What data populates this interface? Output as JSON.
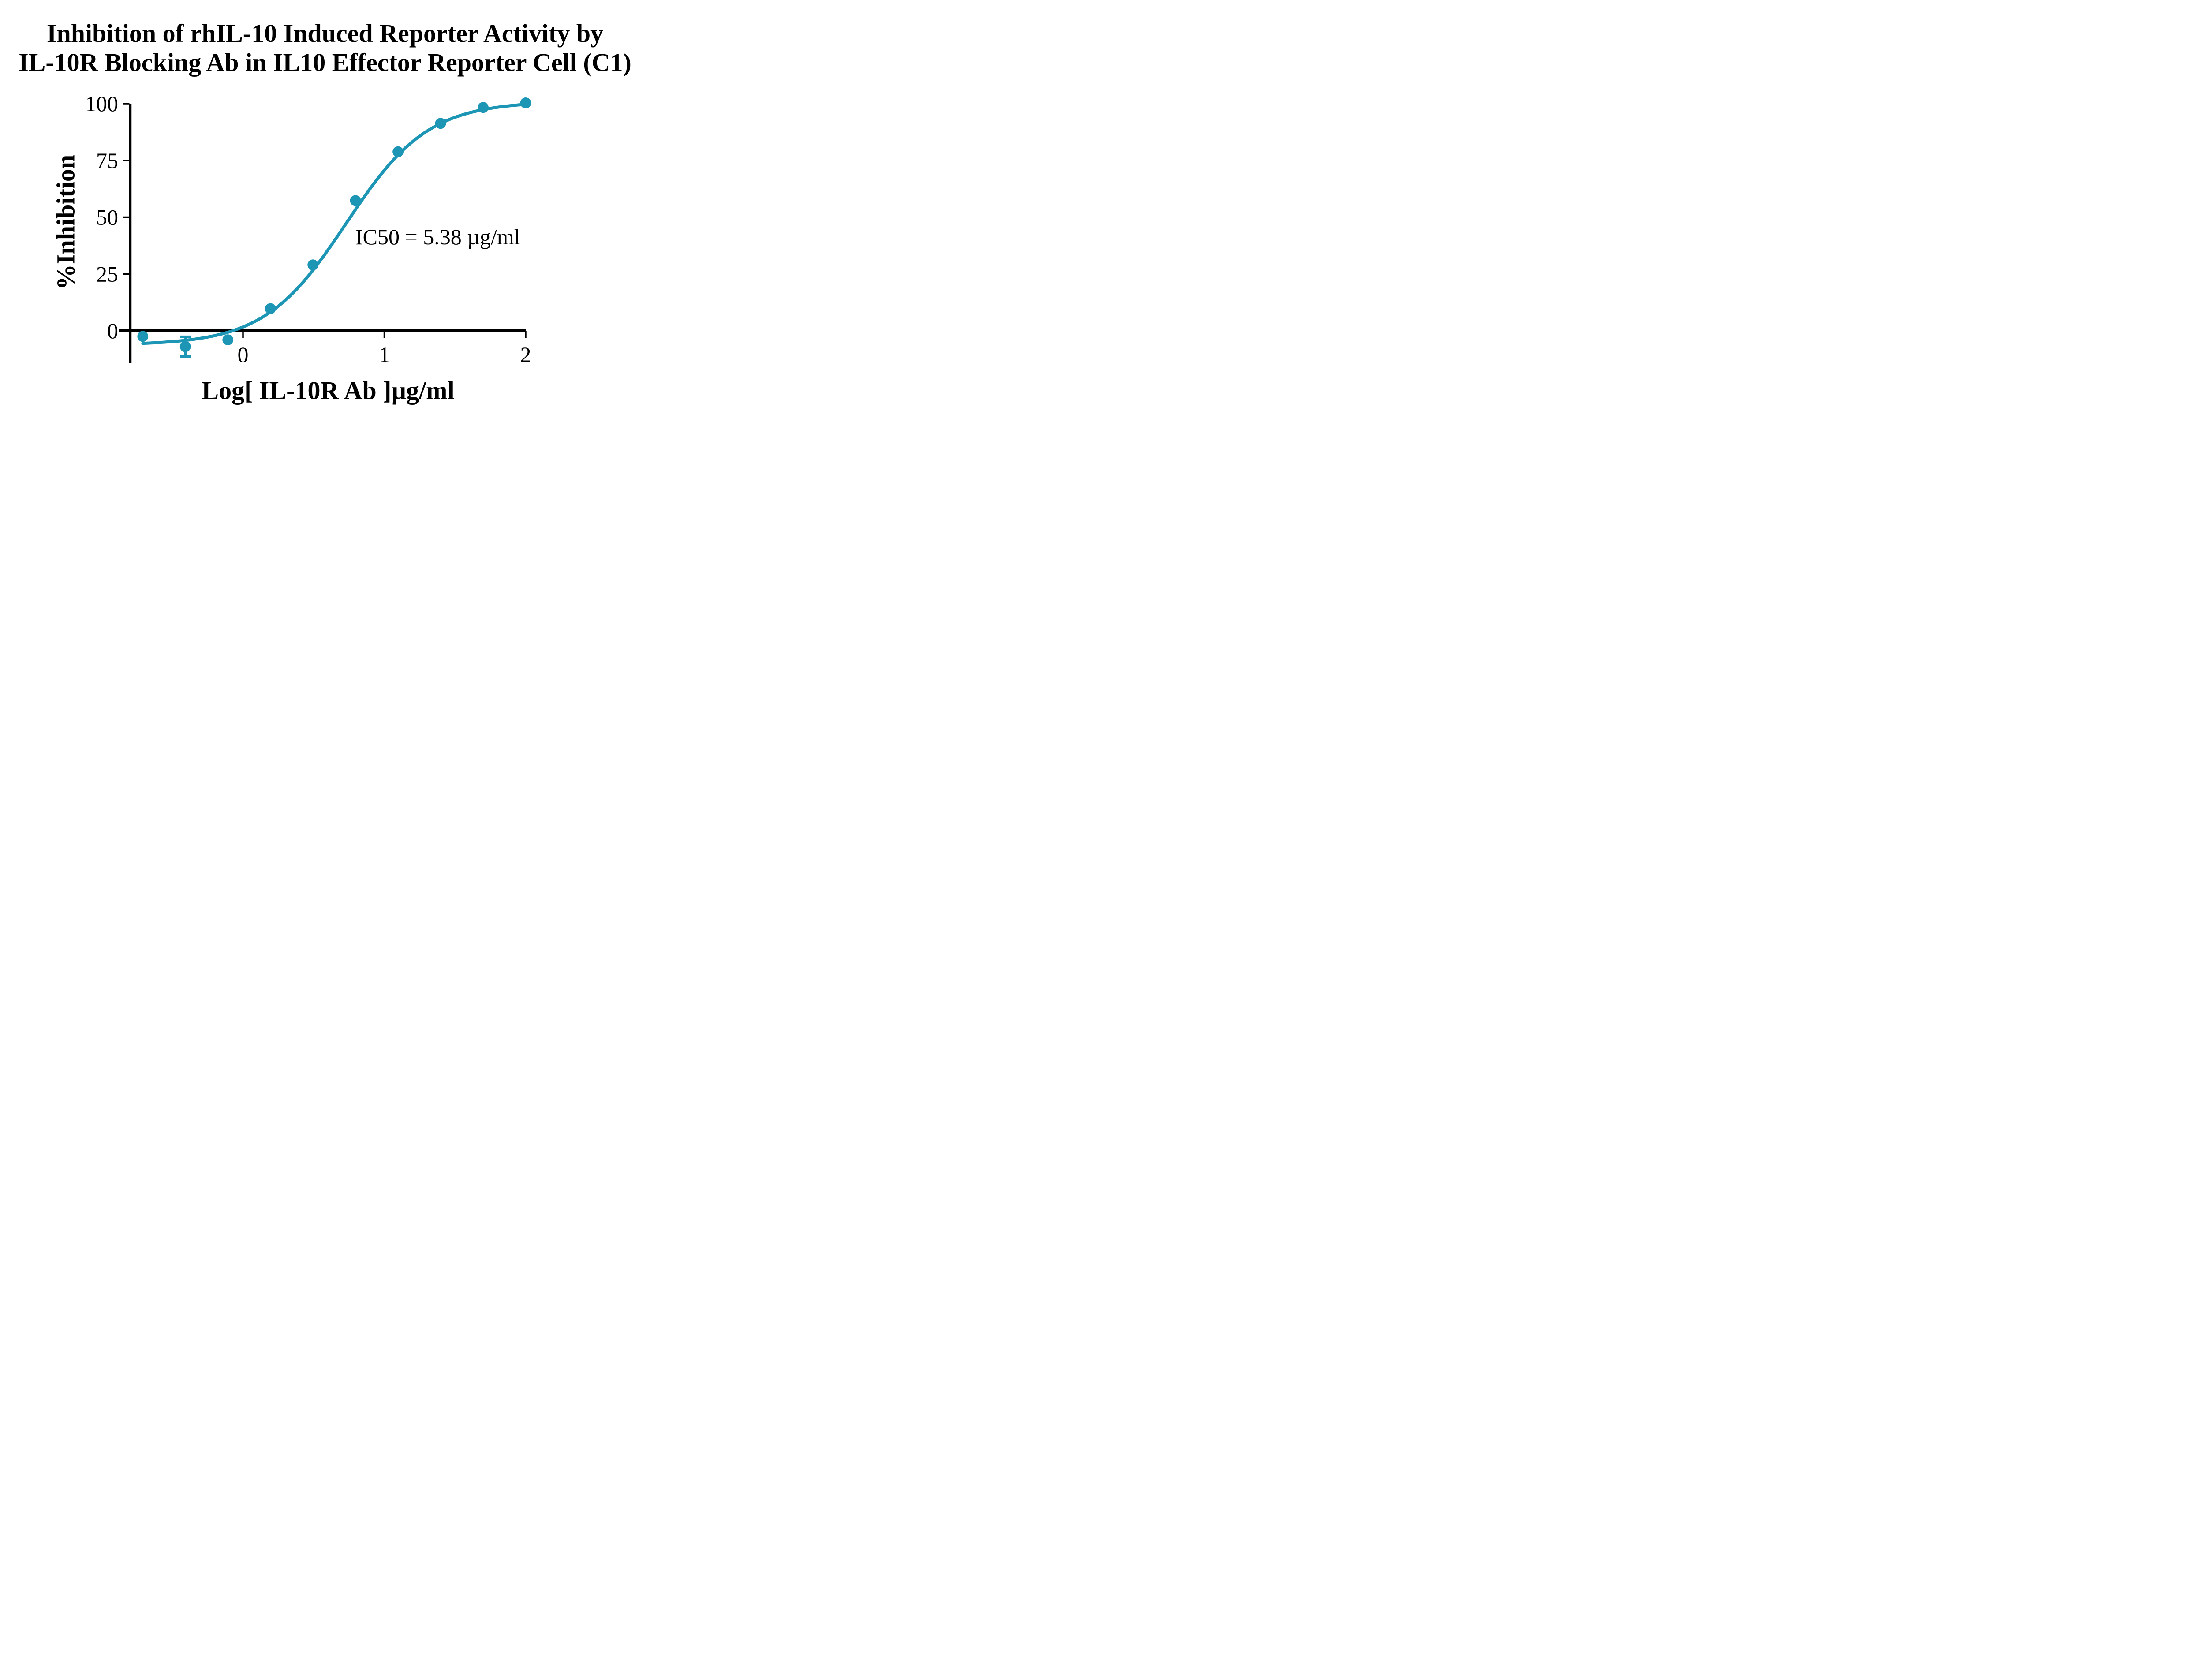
{
  "title": {
    "line1": "Inhibition of rhIL-10 Induced Reporter Activity by",
    "line2": "IL-10R Blocking Ab in IL10 Effector Reporter Cell (C1)"
  },
  "colors": {
    "series": "#1C96B4",
    "axis": "#000000",
    "text": "#000000",
    "background": "#ffffff"
  },
  "chart_data": {
    "type": "scatter",
    "subtype": "dose-response sigmoidal curve with fitted 4-parameter logistic",
    "title": "Inhibition of rhIL-10 Induced Reporter Activity by IL-10R Blocking Ab in IL10 Effector Reporter Cell (C1)",
    "xlabel": "Log[ IL-10R Ab ]µg/ml",
    "ylabel": "%Inhibition",
    "x_axis": {
      "label": "Log[ IL-10R Ab ]µg/ml",
      "ticks": [
        0,
        1,
        2
      ],
      "drawn_range": [
        -0.88,
        2
      ]
    },
    "y_axis": {
      "label": "%Inhibition",
      "ticks": [
        0,
        25,
        50,
        75,
        100
      ],
      "range": [
        0,
        100
      ]
    },
    "grid": false,
    "legend": false,
    "annotation": "IC50 = 5.38 µg/ml",
    "series": [
      {
        "name": "IL-10R Ab",
        "color": "#1C96B4",
        "marker": "circle",
        "points": [
          {
            "x": -0.709,
            "y": -2.5
          },
          {
            "x": -0.408,
            "y": -7.0,
            "error": 4.35
          },
          {
            "x": -0.107,
            "y": -4.0
          },
          {
            "x": 0.194,
            "y": 9.7
          },
          {
            "x": 0.495,
            "y": 29.0
          },
          {
            "x": 0.796,
            "y": 57.3
          },
          {
            "x": 1.097,
            "y": 78.8
          },
          {
            "x": 1.398,
            "y": 91.3
          },
          {
            "x": 1.699,
            "y": 98.3
          },
          {
            "x": 2.0,
            "y": 100.3
          }
        ],
        "fit": {
          "model": "four_parameter_logistic",
          "bottom": -6.3,
          "top": 101.0,
          "logIC50": 0.7308,
          "hillslope": 1.5,
          "x_start": -0.709,
          "x_end": 2.0,
          "ic50_ug_ml": 5.38
        }
      }
    ]
  }
}
